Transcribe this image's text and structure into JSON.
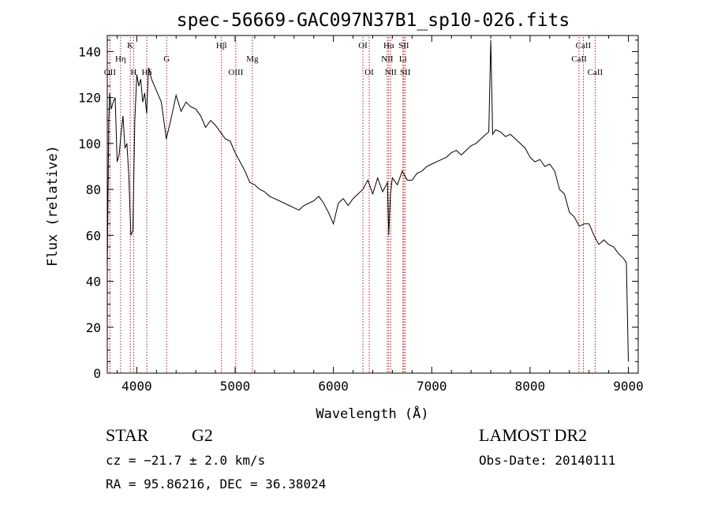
{
  "chart_data": {
    "type": "line",
    "title": "spec-56669-GAC097N37B1_sp10-026.fits",
    "xlabel": "Wavelength (Å)",
    "ylabel": "Flux (relative)",
    "xlim": [
      3700,
      9100
    ],
    "ylim": [
      0,
      147
    ],
    "x_ticks": [
      4000,
      5000,
      6000,
      7000,
      8000,
      9000
    ],
    "y_ticks": [
      0,
      20,
      40,
      60,
      80,
      100,
      120,
      140
    ],
    "line_color": "#000000",
    "marker_color": "#b22222",
    "series": [
      {
        "x": [
          3700,
          3715,
          3725,
          3740,
          3760,
          3780,
          3800,
          3820,
          3840,
          3860,
          3880,
          3900,
          3920,
          3940,
          3960,
          3980,
          4000,
          4020,
          4040,
          4060,
          4080,
          4100,
          4120,
          4150,
          4200,
          4250,
          4300,
          4350,
          4400,
          4450,
          4500,
          4550,
          4600,
          4650,
          4700,
          4750,
          4800,
          4850,
          4900,
          4950,
          5000,
          5050,
          5100,
          5150,
          5200,
          5250,
          5300,
          5350,
          5400,
          5450,
          5500,
          5550,
          5600,
          5650,
          5700,
          5750,
          5800,
          5850,
          5900,
          5950,
          6000,
          6050,
          6100,
          6150,
          6200,
          6250,
          6300,
          6350,
          6400,
          6450,
          6500,
          6550,
          6563,
          6580,
          6600,
          6650,
          6700,
          6750,
          6800,
          6850,
          6900,
          6950,
          7000,
          7050,
          7100,
          7150,
          7200,
          7250,
          7300,
          7350,
          7400,
          7450,
          7500,
          7550,
          7580,
          7600,
          7620,
          7650,
          7700,
          7750,
          7800,
          7850,
          7900,
          7950,
          8000,
          8050,
          8100,
          8150,
          8200,
          8250,
          8300,
          8350,
          8400,
          8450,
          8500,
          8550,
          8600,
          8650,
          8700,
          8750,
          8800,
          8850,
          8900,
          8950,
          8980,
          9000
        ],
        "y": [
          45,
          110,
          122,
          115,
          118,
          120,
          92,
          95,
          104,
          112,
          98,
          100,
          85,
          60,
          62,
          110,
          130,
          125,
          128,
          118,
          122,
          113,
          133,
          128,
          123,
          118,
          102,
          111,
          121,
          114,
          118,
          116,
          115,
          112,
          107,
          110,
          108,
          105,
          102,
          101,
          96,
          92,
          88,
          83,
          82,
          80,
          79,
          77,
          76,
          75,
          74,
          73,
          72,
          71,
          73,
          74,
          75,
          77,
          74,
          70,
          65,
          74,
          76,
          73,
          76,
          78,
          80,
          84,
          78,
          85,
          79,
          83,
          60,
          78,
          85,
          82,
          88,
          84,
          84,
          87,
          88,
          90,
          91,
          92,
          93,
          94,
          96,
          97,
          95,
          97,
          99,
          100,
          102,
          104,
          105,
          145,
          104,
          106,
          105,
          103,
          104,
          102,
          100,
          98,
          94,
          92,
          93,
          90,
          91,
          88,
          80,
          78,
          70,
          68,
          64,
          65,
          65,
          60,
          56,
          58,
          56,
          55,
          52,
          50,
          48,
          5
        ]
      }
    ],
    "line_markers": [
      {
        "label": "OII",
        "wavelength": 3727,
        "row": 3
      },
      {
        "label": "Hη",
        "wavelength": 3835,
        "row": 2
      },
      {
        "label": "K",
        "wavelength": 3934,
        "row": 1
      },
      {
        "label": "H",
        "wavelength": 3968,
        "row": 3
      },
      {
        "label": "Hδ",
        "wavelength": 4102,
        "row": 3
      },
      {
        "label": "G",
        "wavelength": 4304,
        "row": 2
      },
      {
        "label": "Hβ",
        "wavelength": 4861,
        "row": 1
      },
      {
        "label": "OIII",
        "wavelength": 5007,
        "row": 3
      },
      {
        "label": "Mg",
        "wavelength": 5175,
        "row": 2
      },
      {
        "label": "OI",
        "wavelength": 6300,
        "row": 1
      },
      {
        "label": "OI",
        "wavelength": 6364,
        "row": 3
      },
      {
        "label": "NII",
        "wavelength": 6548,
        "row": 2
      },
      {
        "label": "Hα",
        "wavelength": 6563,
        "row": 1
      },
      {
        "label": "NII",
        "wavelength": 6583,
        "row": 3
      },
      {
        "label": "Li",
        "wavelength": 6707,
        "row": 2
      },
      {
        "label": "SII",
        "wavelength": 6716,
        "row": 1
      },
      {
        "label": "SII",
        "wavelength": 6731,
        "row": 3
      },
      {
        "label": "CaII",
        "wavelength": 8498,
        "row": 2
      },
      {
        "label": "CaII",
        "wavelength": 8542,
        "row": 1
      },
      {
        "label": "CaII",
        "wavelength": 8662,
        "row": 3
      }
    ]
  },
  "info": {
    "class_label": "STAR",
    "subclass": "G2",
    "survey": "LAMOST DR2",
    "cz": "cz = −21.7 ± 2.0 km/s",
    "obs_date": "Obs-Date: 20140111",
    "coords": "RA =  95.86216, DEC =  36.38024"
  }
}
